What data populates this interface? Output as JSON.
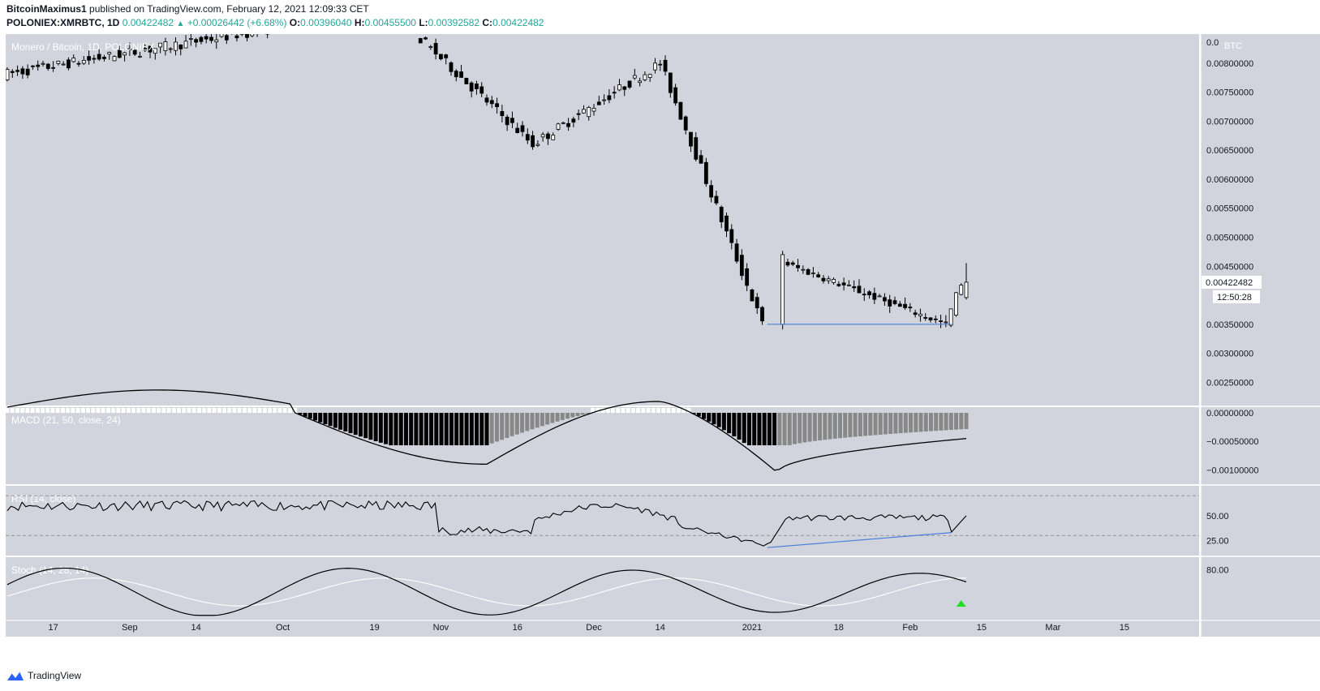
{
  "header": {
    "author": "BitcoinMaximus1",
    "published_text": "published on TradingView.com, February 12, 2021 12:09:33 CET",
    "symbol": "POLONIEX:XMRBTC, 1D",
    "last": "0.00422482",
    "change_arrow": "▲",
    "change": "+0.00026442 (+6.68%)",
    "o_label": "O:",
    "o": "0.00396040",
    "h_label": "H:",
    "h": "0.00455500",
    "l_label": "L:",
    "l": "0.00392582",
    "c_label": "C:",
    "c": "0.00422482"
  },
  "footer": {
    "brand": "TradingView",
    "logo_icon": "tradingview-logo-icon"
  },
  "colors": {
    "pane_bg": "#d1d4dc",
    "up_candle": "#ffffff",
    "down_candle": "#000000",
    "line": "#000000",
    "support_line": "#4a7fd9",
    "stoch_signal": "#ffffff",
    "buy_signal": "#22dd22",
    "macd_hist_dark": "#000000",
    "macd_hist_mid": "#888888",
    "macd_hist_light": "#ffffff"
  },
  "chart_data": [
    {
      "type": "candlestick",
      "title": "Monero / Bitcoin, 1D, POLONIEX",
      "currency_badge": "BTC",
      "price_axis": [
        "0.00800000",
        "0.00750000",
        "0.00700000",
        "0.00650000",
        "0.00600000",
        "0.00550000",
        "0.00500000",
        "0.00450000",
        "0.00350000",
        "0.00300000",
        "0.00250000"
      ],
      "top_partial_label": "0.0",
      "last_price_label": "0.00422482",
      "countdown_label": "12:50:28",
      "ylim": [
        0.0021,
        0.0085
      ],
      "time_axis": [
        "17",
        "Sep",
        "14",
        "Oct",
        "19",
        "Nov",
        "16",
        "Dec",
        "14",
        "2021",
        "18",
        "Feb",
        "15",
        "Mar",
        "15"
      ],
      "approx_segments": [
        {
          "from_date": "2020-08-08",
          "to_date": "2020-09-30",
          "trend": "choppy rise",
          "price_from": 0.0078,
          "price_to": 0.0086
        },
        {
          "from_date": "2020-10-28",
          "to_date": "2020-11-20",
          "trend": "decline",
          "price_from": 0.0085,
          "price_to": 0.0066
        },
        {
          "from_date": "2020-11-20",
          "to_date": "2020-12-15",
          "trend": "recovery",
          "price_from": 0.0066,
          "price_to": 0.008
        },
        {
          "from_date": "2020-12-15",
          "to_date": "2021-01-04",
          "trend": "sharp decline",
          "price_from": 0.008,
          "price_to": 0.0035
        },
        {
          "from_date": "2021-01-07",
          "to_date": "2021-02-09",
          "trend": "range",
          "price_from": 0.0046,
          "price_to": 0.0035
        },
        {
          "from_date": "2021-02-09",
          "to_date": "2021-02-12",
          "trend": "bounce",
          "price_from": 0.0035,
          "price_to": 0.00422482
        }
      ],
      "support_line": {
        "from_date": "2021-01-04",
        "to_date": "2021-02-09",
        "price": 0.0035
      }
    },
    {
      "type": "histogram+line",
      "title": "MACD (21, 50, close, 24)",
      "axis_labels": [
        "0.00000000",
        "−0.00050000",
        "−0.00100000"
      ],
      "ylim": [
        -0.00125,
        0.0001
      ],
      "min_value_approx": -0.00105,
      "min_date_approx": "2021-01-06",
      "last_value_approx": -0.00045
    },
    {
      "type": "line",
      "title": "RSI (14, close)",
      "axis_labels": [
        "50.00",
        "25.00"
      ],
      "ylim": [
        10,
        80
      ],
      "bands": [
        70,
        30
      ],
      "low_value_approx": 18,
      "low_date_approx": "2021-01-04",
      "divergence_line": {
        "from_date": "2021-01-04",
        "from_value": 18,
        "to_date": "2021-02-09",
        "to_value": 33
      },
      "last_value_approx": 50
    },
    {
      "type": "line",
      "title": "Stoch (14, 28, 14)",
      "axis_labels": [
        "80.00"
      ],
      "ylim": [
        0,
        100
      ],
      "buy_signal_date": "2021-02-11"
    }
  ]
}
